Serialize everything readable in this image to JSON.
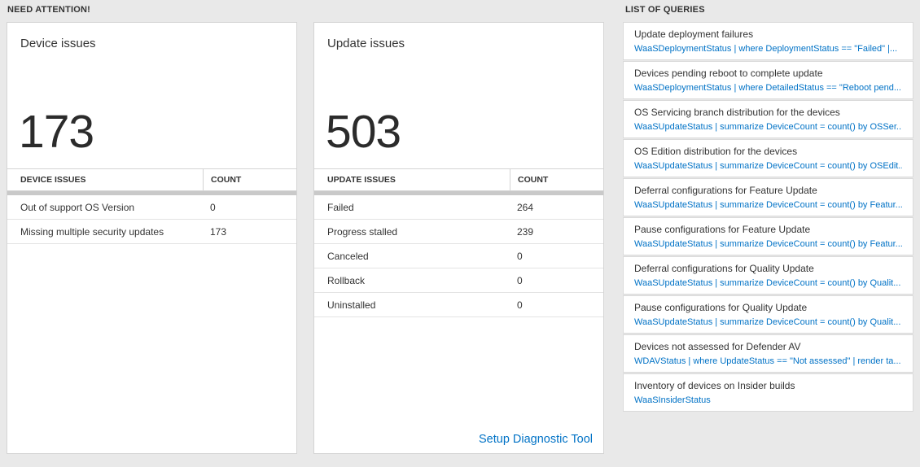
{
  "need_attention": {
    "title": "NEED ATTENTION!"
  },
  "queries_section": {
    "title": "LIST OF QUERIES",
    "items": [
      {
        "title": "Update deployment failures",
        "query": "WaaSDeploymentStatus | where DeploymentStatus == \"Failed\" |..."
      },
      {
        "title": "Devices pending reboot to complete update",
        "query": "WaaSDeploymentStatus | where DetailedStatus == \"Reboot pend..."
      },
      {
        "title": "OS Servicing branch distribution for the devices",
        "query": "WaaSUpdateStatus | summarize DeviceCount = count() by OSSer..."
      },
      {
        "title": "OS Edition distribution for the devices",
        "query": "WaaSUpdateStatus | summarize DeviceCount = count() by OSEdit..."
      },
      {
        "title": "Deferral configurations for Feature Update",
        "query": "WaaSUpdateStatus | summarize DeviceCount = count() by Featur..."
      },
      {
        "title": "Pause configurations for Feature Update",
        "query": "WaaSUpdateStatus | summarize DeviceCount = count() by Featur..."
      },
      {
        "title": "Deferral configurations for Quality Update",
        "query": "WaaSUpdateStatus | summarize DeviceCount = count() by Qualit..."
      },
      {
        "title": "Pause configurations for Quality Update",
        "query": "WaaSUpdateStatus | summarize DeviceCount = count() by Qualit..."
      },
      {
        "title": "Devices not assessed for Defender AV",
        "query": "WDAVStatus | where UpdateStatus == \"Not assessed\" | render ta..."
      },
      {
        "title": "Inventory of devices on Insider builds",
        "query": "WaaSInsiderStatus"
      }
    ]
  },
  "device_issues": {
    "title": "Device issues",
    "count": "173",
    "table": {
      "headers": [
        "DEVICE ISSUES",
        "COUNT"
      ],
      "rows": [
        {
          "label": "Out of support OS Version",
          "count": "0"
        },
        {
          "label": "Missing multiple security updates",
          "count": "173"
        }
      ]
    }
  },
  "update_issues": {
    "title": "Update issues",
    "count": "503",
    "table": {
      "headers": [
        "UPDATE ISSUES",
        "COUNT"
      ],
      "rows": [
        {
          "label": "Failed",
          "count": "264"
        },
        {
          "label": "Progress stalled",
          "count": "239"
        },
        {
          "label": "Canceled",
          "count": "0"
        },
        {
          "label": "Rollback",
          "count": "0"
        },
        {
          "label": "Uninstalled",
          "count": "0"
        }
      ]
    },
    "footer_link": "Setup Diagnostic Tool"
  },
  "colors": {
    "accent_blue": "#0072c6",
    "background": "#e9e9e9",
    "card_background": "#ffffff",
    "text_dark": "#333333",
    "scrollbar_gray": "#c9c9c9"
  }
}
